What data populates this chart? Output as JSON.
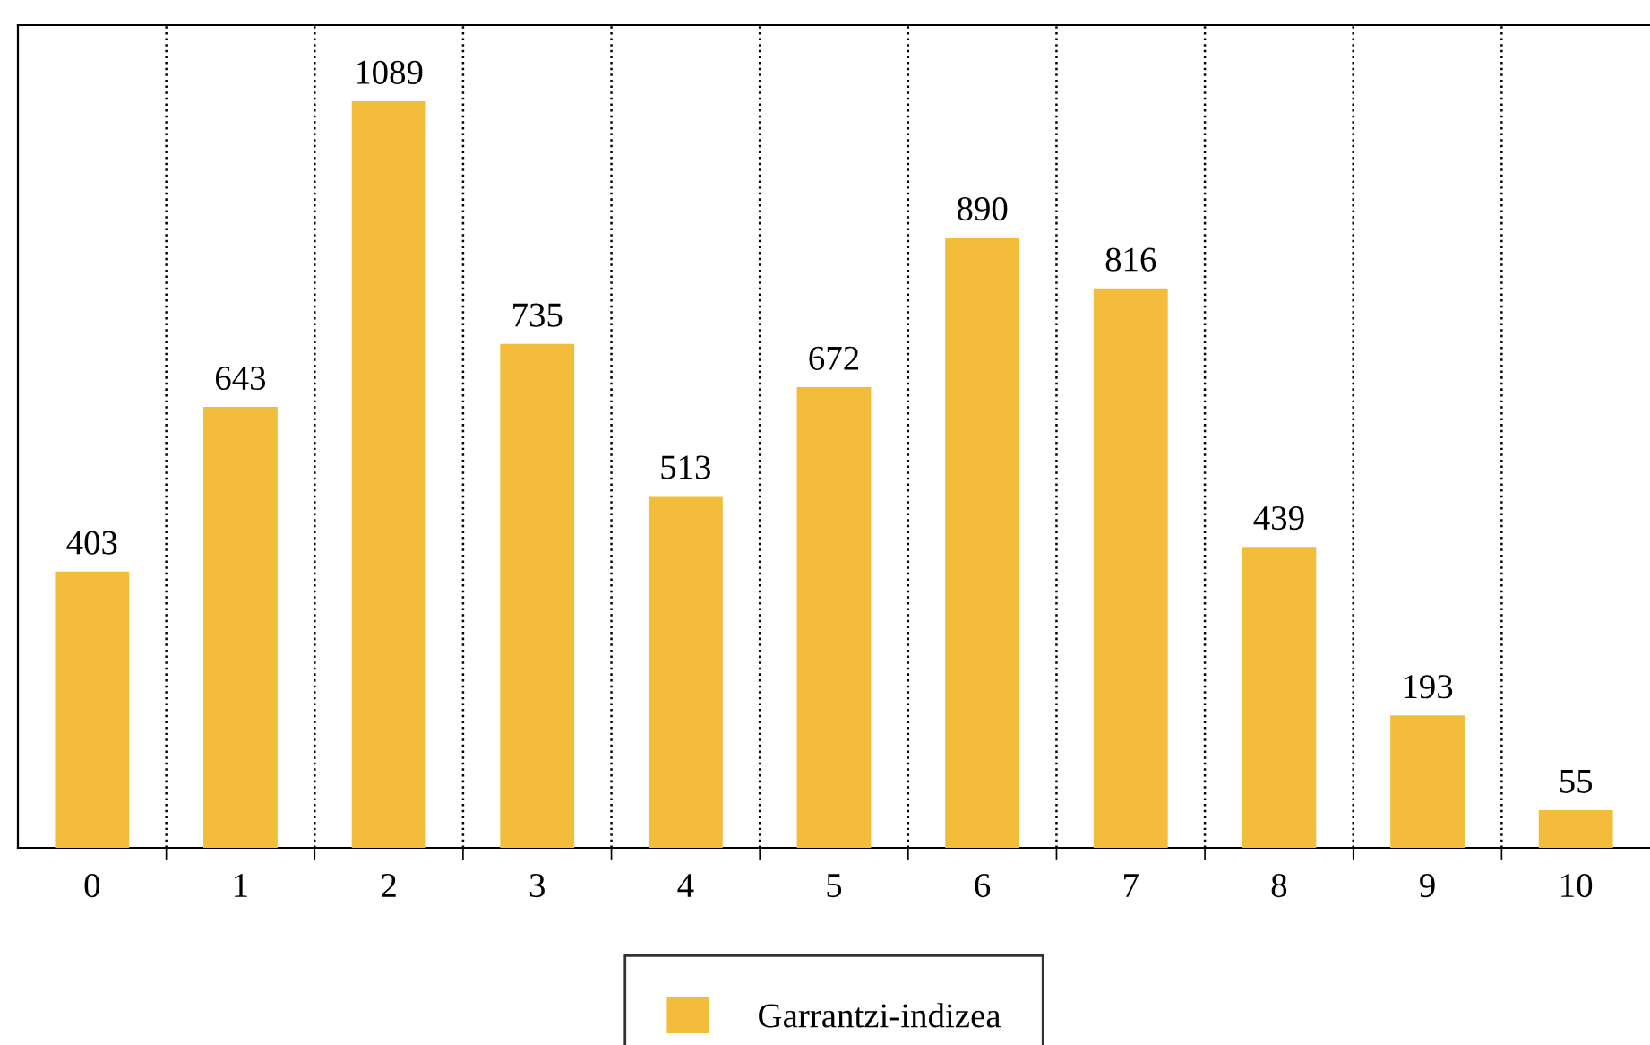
{
  "chart_data": {
    "type": "bar",
    "categories": [
      "0",
      "1",
      "2",
      "3",
      "4",
      "5",
      "6",
      "7",
      "8",
      "9",
      "10"
    ],
    "series": [
      {
        "name": "Garrantzi-indizea",
        "color": "#f3bd3b",
        "values": [
          403,
          643,
          1089,
          735,
          513,
          672,
          890,
          816,
          439,
          193,
          55
        ]
      }
    ],
    "ylim": [
      0,
      1200
    ],
    "tick_labels": "x",
    "data_labels": true,
    "grid": "x",
    "line_style": "dotted",
    "legend": "bottom"
  }
}
